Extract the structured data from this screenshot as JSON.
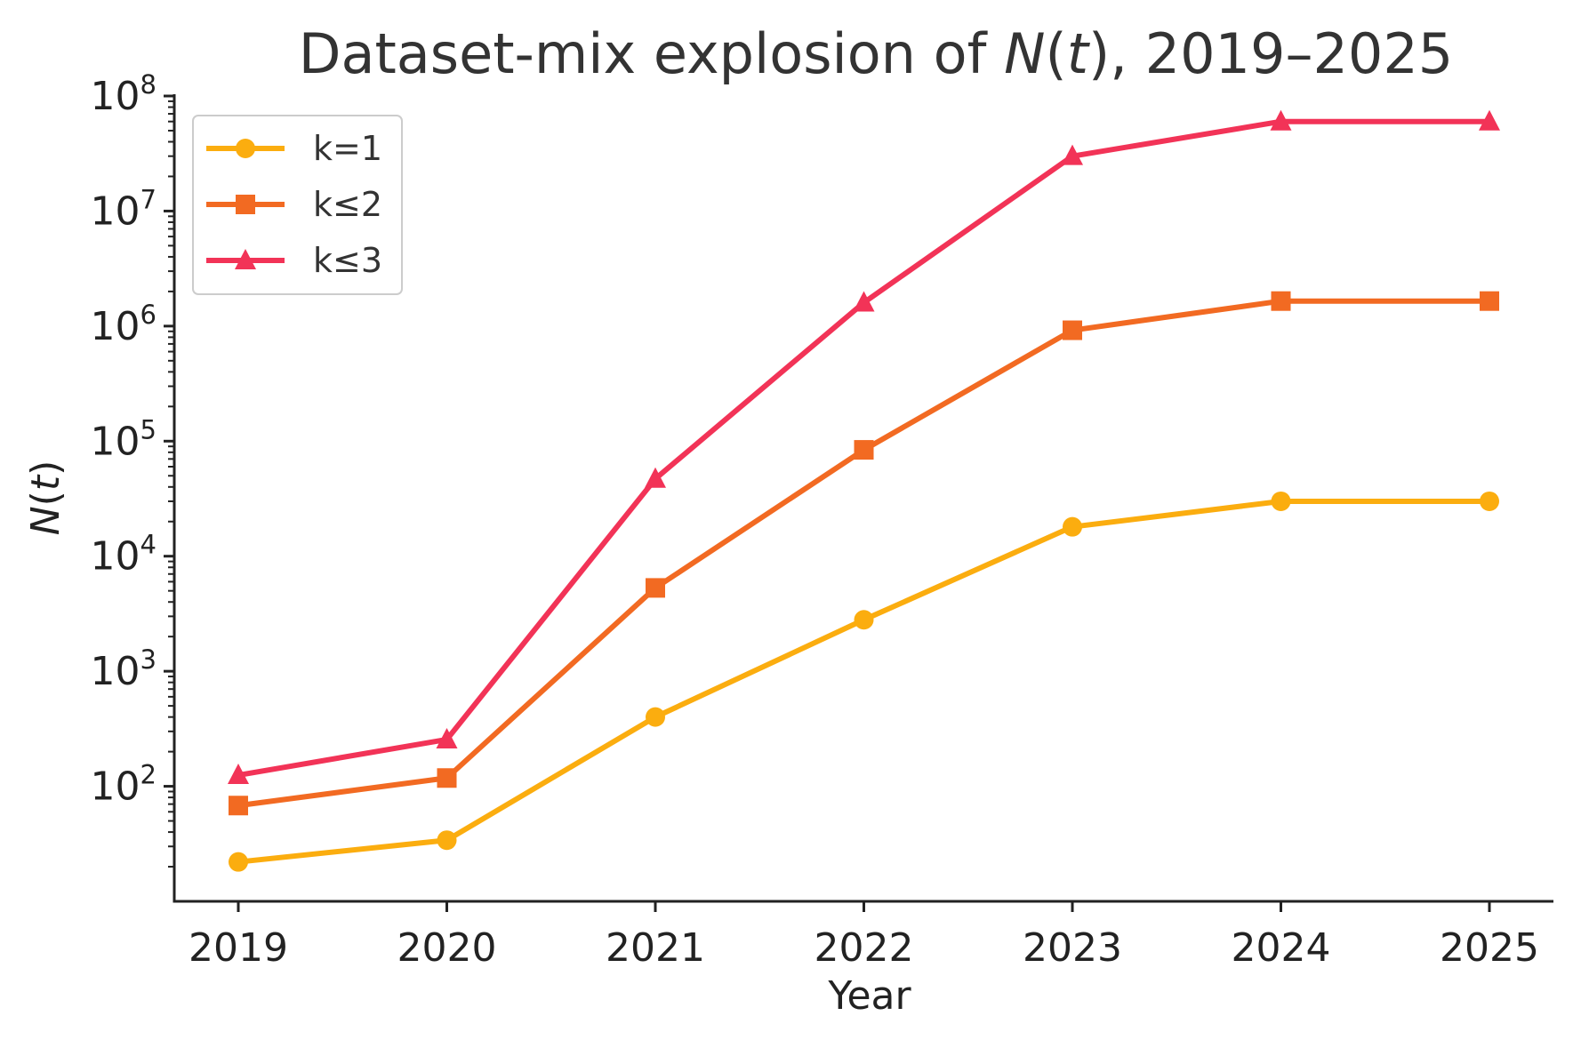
{
  "chart_data": {
    "type": "line",
    "title": {
      "prefix": "Dataset-mix explosion of ",
      "symbol": "N",
      "paren_open": "(",
      "variable": "t",
      "paren_close": ")",
      "suffix": ", 2019–2025"
    },
    "xlabel": "Year",
    "ylabel": {
      "symbol": "N",
      "paren_open": "(",
      "variable": "t",
      "paren_close": ")"
    },
    "x": [
      2019,
      2020,
      2021,
      2022,
      2023,
      2024,
      2025
    ],
    "x_tick_labels": [
      "2019",
      "2020",
      "2021",
      "2022",
      "2023",
      "2024",
      "2025"
    ],
    "yscale": "log",
    "ylim": [
      10,
      100000000
    ],
    "y_tick_labels": [
      {
        "base": "10",
        "exponent": "2",
        "value": 100
      },
      {
        "base": "10",
        "exponent": "3",
        "value": 1000
      },
      {
        "base": "10",
        "exponent": "4",
        "value": 10000
      },
      {
        "base": "10",
        "exponent": "5",
        "value": 100000
      },
      {
        "base": "10",
        "exponent": "6",
        "value": 1000000
      },
      {
        "base": "10",
        "exponent": "7",
        "value": 10000000
      },
      {
        "base": "10",
        "exponent": "8",
        "value": 100000000
      }
    ],
    "grid": false,
    "legend_position": "top-left",
    "series": [
      {
        "name": "k=1",
        "color": "#FBAD0F",
        "marker": "circle",
        "values": [
          22,
          34,
          400,
          2800,
          18000,
          30000,
          30000
        ]
      },
      {
        "name": "k≤2",
        "color": "#F26A22",
        "marker": "square",
        "values": [
          68,
          118,
          5300,
          84000,
          920000,
          1650000,
          1650000
        ]
      },
      {
        "name": "k≤3",
        "color": "#F23357",
        "marker": "triangle",
        "values": [
          125,
          255,
          47000,
          1600000,
          30000000,
          60000000,
          60000000
        ]
      }
    ]
  }
}
